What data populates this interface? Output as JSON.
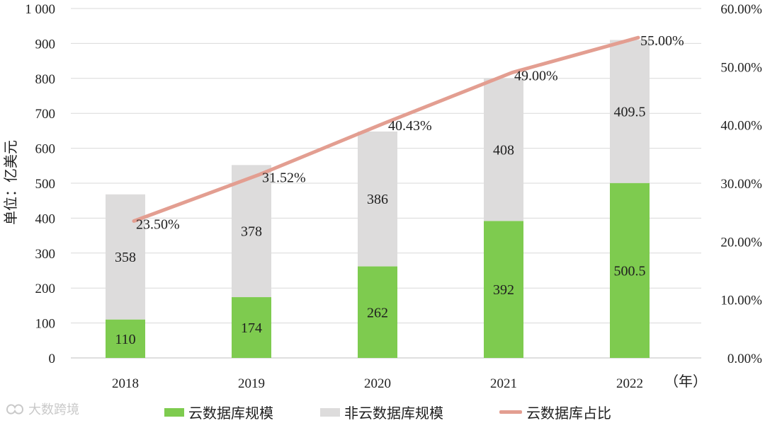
{
  "chart_data": {
    "type": "bar",
    "stacked": true,
    "categories": [
      "2018",
      "2019",
      "2020",
      "2021",
      "2022"
    ],
    "series": [
      {
        "name": "云数据库规模",
        "values": [
          110,
          174,
          262,
          392,
          500.5
        ],
        "labels": [
          "110",
          "174",
          "262",
          "392",
          "500.5"
        ],
        "color": "#7ecb4f"
      },
      {
        "name": "非云数据库规模",
        "values": [
          358,
          378,
          386,
          408,
          409.5
        ],
        "labels": [
          "358",
          "378",
          "386",
          "408",
          "409.5"
        ],
        "color": "#dddcdc"
      }
    ],
    "line_series": {
      "name": "云数据库占比",
      "values": [
        23.5,
        31.52,
        40.43,
        49.0,
        55.0
      ],
      "labels": [
        "23.50%",
        "31.52%",
        "40.43%",
        "49.00%",
        "55.00%"
      ],
      "color": "#e39e91",
      "axis": "right"
    },
    "ylabel": "单位：亿美元",
    "x_unit": "（年）",
    "ylim": [
      0,
      1000
    ],
    "yticks": [
      0,
      100,
      200,
      300,
      400,
      500,
      600,
      700,
      800,
      900,
      1000
    ],
    "ytick_labels": [
      "0",
      "100",
      "200",
      "300",
      "400",
      "500",
      "600",
      "700",
      "800",
      "900",
      "1 000"
    ],
    "y2lim": [
      0,
      60
    ],
    "y2ticks": [
      0,
      10,
      20,
      30,
      40,
      50,
      60
    ],
    "y2tick_labels": [
      "0.00%",
      "10.00%",
      "20.00%",
      "30.00%",
      "40.00%",
      "50.00%",
      "60.00%"
    ],
    "grid": true,
    "legend_position": "bottom"
  },
  "watermark": {
    "text": "大数跨境"
  }
}
